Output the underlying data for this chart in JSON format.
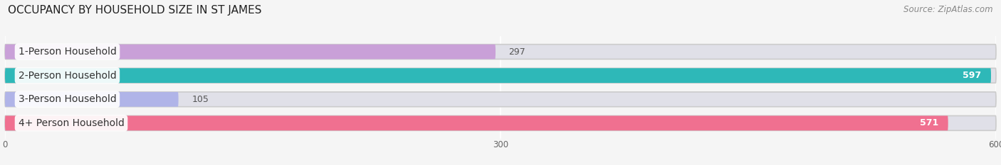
{
  "title": "OCCUPANCY BY HOUSEHOLD SIZE IN ST JAMES",
  "source": "Source: ZipAtlas.com",
  "categories": [
    "1-Person Household",
    "2-Person Household",
    "3-Person Household",
    "4+ Person Household"
  ],
  "values": [
    297,
    597,
    105,
    571
  ],
  "bar_colors": [
    "#c9a0d8",
    "#2eb8b8",
    "#b0b4e8",
    "#f07090"
  ],
  "bar_bg_color": "#e0e0e8",
  "xlim": [
    0,
    600
  ],
  "xticks": [
    0,
    300,
    600
  ],
  "background_color": "#f5f5f5",
  "title_fontsize": 11,
  "source_fontsize": 8.5,
  "label_fontsize": 10,
  "value_fontsize": 9
}
